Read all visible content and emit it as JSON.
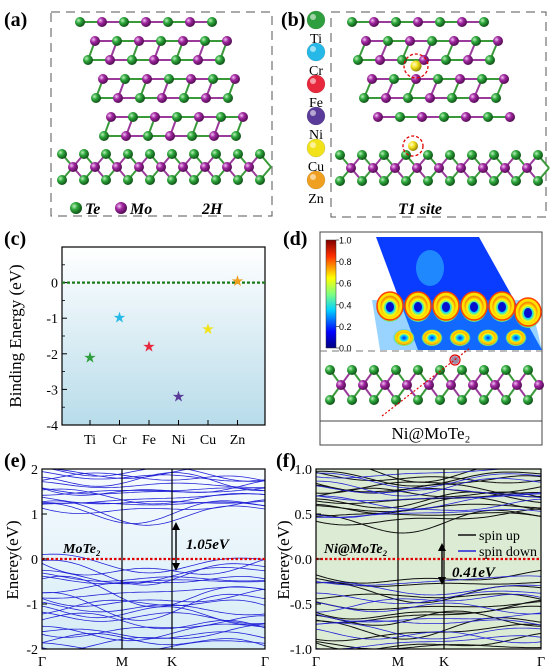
{
  "panels": {
    "a": {
      "label": "(a)",
      "legend": [
        {
          "symbol": "Te",
          "color": "#1e8a2a"
        },
        {
          "symbol": "Mo",
          "color": "#8e1e8e"
        }
      ],
      "phase": "2H"
    },
    "b": {
      "label": "(b)",
      "site": "T1 site",
      "atoms": [
        {
          "symbol": "Ti",
          "color": "#2e9e3e"
        },
        {
          "symbol": "Cr",
          "color": "#26b8e6"
        },
        {
          "symbol": "Fe",
          "color": "#e8283c"
        },
        {
          "symbol": "Ni",
          "color": "#5a3b9a"
        },
        {
          "symbol": "Cu",
          "color": "#f2e21a"
        },
        {
          "symbol": "Zn",
          "color": "#f0a020"
        }
      ]
    },
    "c": {
      "label": "(c)",
      "ylabel": "Binding Energy (eV)"
    },
    "d": {
      "label": "(d)",
      "caption": "Ni@MoTe₂",
      "colorbar_ticks": [
        "1.0",
        "0.8",
        "0.6",
        "0.4",
        "0.2",
        "0.0"
      ]
    },
    "e": {
      "label": "(e)",
      "material": "MoTe₂",
      "gap": "1.05eV",
      "ylabel": "Enerey(eV)"
    },
    "f": {
      "label": "(f)",
      "material": "Ni@MoTe₂",
      "gap": "0.41eV",
      "ylabel": "Enerey(eV)",
      "legend": [
        "spin up",
        "spin down"
      ]
    }
  },
  "colors": {
    "Te": "#1e8a2a",
    "Mo": "#8e1e8e",
    "Ni": "#5a3b9a",
    "band_blue": "#2323d8",
    "band_black": "#111111",
    "fermi": "#e00000",
    "binding_bg_top": "#ffffff",
    "binding_bg_bottom": "#b8dcea",
    "f_bg": "#dcebd3"
  },
  "chart_data": [
    {
      "type": "scatter",
      "panel": "c",
      "title": "",
      "xlabel": "",
      "ylabel": "Binding Energy (eV)",
      "categories": [
        "Ti",
        "Cr",
        "Fe",
        "Ni",
        "Cu",
        "Zn"
      ],
      "values": [
        -2.1,
        -0.98,
        -1.8,
        -3.2,
        -1.3,
        0.05
      ],
      "colors": [
        "#2e9e3e",
        "#26b8e6",
        "#e8283c",
        "#5a3b9a",
        "#f2e21a",
        "#f0a020"
      ],
      "ylim": [
        -4,
        1
      ],
      "yticks": [
        -4,
        -3,
        -2,
        -1,
        0
      ],
      "reference_line": 0,
      "marker": "star"
    },
    {
      "type": "line",
      "panel": "e",
      "title": "MoTe₂",
      "ylabel": "Enerey(eV)",
      "xticks": [
        "Γ",
        "M",
        "K",
        "Γ"
      ],
      "ylim": [
        -2,
        2
      ],
      "yticks": [
        -2,
        -1,
        0,
        1,
        2
      ],
      "band_gap_eV": 1.05,
      "fermi_level": 0
    },
    {
      "type": "line",
      "panel": "f",
      "title": "Ni@MoTe₂",
      "ylabel": "Enerey(eV)",
      "xticks": [
        "Γ",
        "M",
        "K",
        "Γ"
      ],
      "ylim": [
        -1.0,
        1.0
      ],
      "yticks": [
        -1.0,
        -0.5,
        0.0,
        0.5,
        1.0
      ],
      "band_gap_eV": 0.41,
      "fermi_level": 0,
      "series": [
        {
          "name": "spin up"
        },
        {
          "name": "spin down"
        }
      ]
    }
  ]
}
